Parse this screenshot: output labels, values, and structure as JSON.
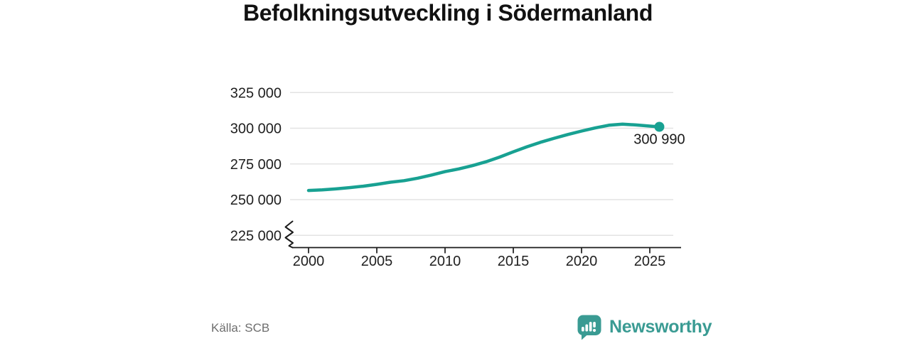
{
  "chart_data": {
    "type": "line",
    "title": "Befolkningsutveckling i Södermanland",
    "xlabel": "",
    "ylabel": "",
    "x": [
      2000,
      2001,
      2002,
      2003,
      2004,
      2005,
      2006,
      2007,
      2008,
      2009,
      2010,
      2011,
      2012,
      2013,
      2014,
      2015,
      2016,
      2017,
      2018,
      2019,
      2020,
      2021,
      2022,
      2023,
      2024,
      2025,
      2025.7
    ],
    "values": [
      256400,
      256800,
      257500,
      258400,
      259400,
      260700,
      262200,
      263300,
      265000,
      267200,
      269600,
      271500,
      273800,
      276500,
      279800,
      283500,
      287000,
      290200,
      293000,
      295600,
      298000,
      300200,
      302100,
      302900,
      302300,
      301500,
      300990
    ],
    "end_label": "300 990",
    "x_ticks": [
      {
        "value": 2000,
        "label": "2000"
      },
      {
        "value": 2005,
        "label": "2005"
      },
      {
        "value": 2010,
        "label": "2010"
      },
      {
        "value": 2015,
        "label": "2015"
      },
      {
        "value": 2020,
        "label": "2020"
      },
      {
        "value": 2025,
        "label": "2025"
      }
    ],
    "y_ticks": [
      {
        "value": 325000,
        "label": "325 000"
      },
      {
        "value": 300000,
        "label": "300 000"
      },
      {
        "value": 275000,
        "label": "275 000"
      },
      {
        "value": 250000,
        "label": "250 000"
      },
      {
        "value": 225000,
        "label": "225 000"
      }
    ],
    "ylim": [
      225000,
      335000
    ],
    "xlim": [
      2000,
      2027
    ],
    "grid": true,
    "axis_break": true,
    "legend": "none"
  },
  "footer": {
    "source": "Källa: SCB",
    "brand": "Newsworthy"
  },
  "colors": {
    "line": "#18a192",
    "marker": "#18a192",
    "grid": "#e3e3e3",
    "axis": "#1a1a1a",
    "tick_text": "#1f1f1f",
    "end_label_text": "#1a1a1a",
    "title_text": "#111111",
    "source_text": "#6e6e6e",
    "brand_teal": "#3a9b93",
    "background": "#ffffff"
  },
  "icons": {
    "logo": "newsworthy-speech-bubble-bar-chart-icon"
  }
}
